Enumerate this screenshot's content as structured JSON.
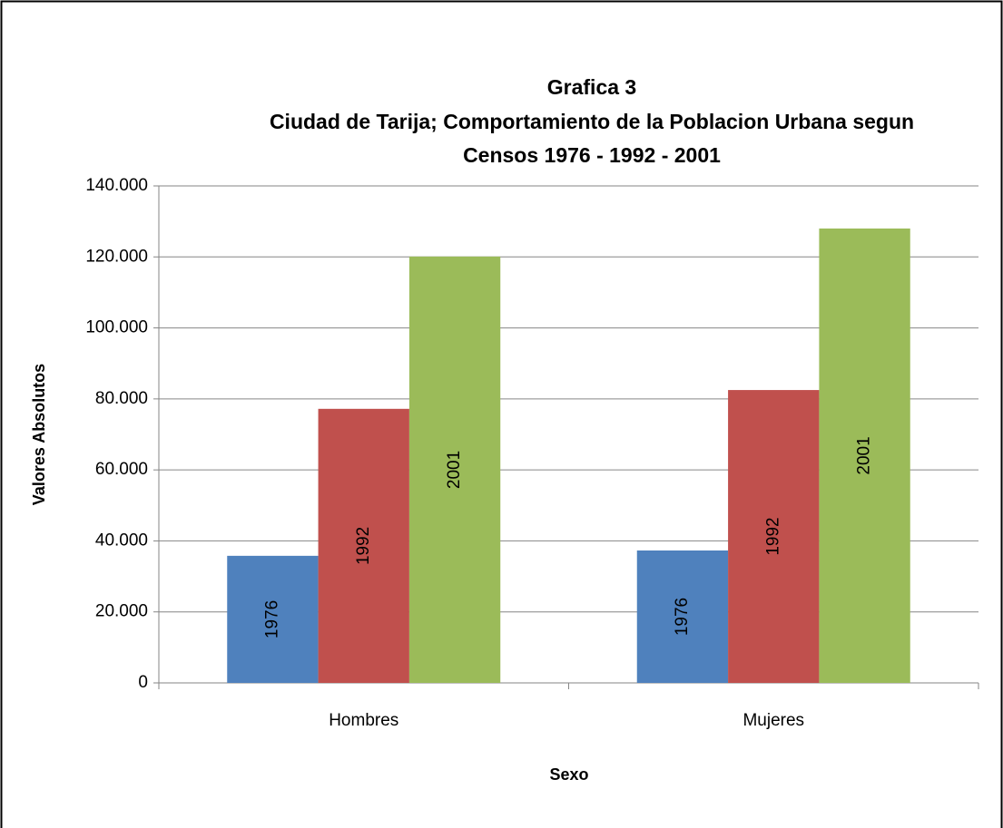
{
  "chart_data": {
    "type": "bar",
    "title": [
      "Grafica 3",
      "Ciudad de Tarija; Comportamiento de la Poblacion Urbana segun",
      "Censos 1976 - 1992 - 2001"
    ],
    "y_label": "Valores Absolutos",
    "x_label": "Sexo",
    "categories": [
      "Hombres",
      "Mujeres"
    ],
    "series": [
      {
        "name": "1976",
        "color": "#4f81bd",
        "values": [
          35800,
          37300
        ]
      },
      {
        "name": "1992",
        "color": "#c0504d",
        "values": [
          77200,
          82500
        ]
      },
      {
        "name": "2001",
        "color": "#9bbb59",
        "values": [
          120100,
          128000
        ]
      }
    ],
    "ylim": [
      0,
      140000
    ],
    "yticks": [
      0,
      {
        "value": 20000,
        "label": "20.000"
      },
      {
        "value": 40000,
        "label": "40.000"
      },
      {
        "value": 60000,
        "label": "60.000"
      },
      {
        "value": 80000,
        "label": "80.000"
      },
      {
        "value": 100000,
        "label": "100.000"
      },
      {
        "value": 120000,
        "label": "120.000"
      },
      {
        "value": 140000,
        "label": "140.000"
      }
    ],
    "grid": true
  }
}
